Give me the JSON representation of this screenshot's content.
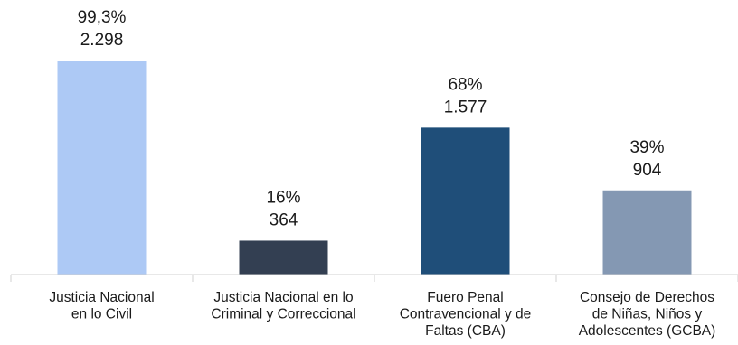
{
  "chart_data": {
    "type": "bar",
    "title": "",
    "xlabel": "",
    "ylabel": "",
    "categories": [
      [
        "Justicia Nacional",
        "en lo Civil"
      ],
      [
        "Justicia Nacional en lo",
        "Criminal y Correccional"
      ],
      [
        "Fuero Penal",
        "Contravencional y de",
        "Faltas (CBA)"
      ],
      [
        "Consejo de Derechos",
        "de Niñas, Niños y",
        "Adolescentes (GCBA)"
      ]
    ],
    "values": [
      2298,
      364,
      1577,
      904
    ],
    "percent_labels": [
      "99,3%",
      "16%",
      "68%",
      "39%"
    ],
    "value_labels": [
      "2.298",
      "364",
      "1.577",
      "904"
    ],
    "colors": [
      "#adc9f5",
      "#333f52",
      "#1f4e79",
      "#8498b3"
    ],
    "ylim": [
      0,
      2298
    ],
    "grid": false,
    "legend": "none"
  }
}
